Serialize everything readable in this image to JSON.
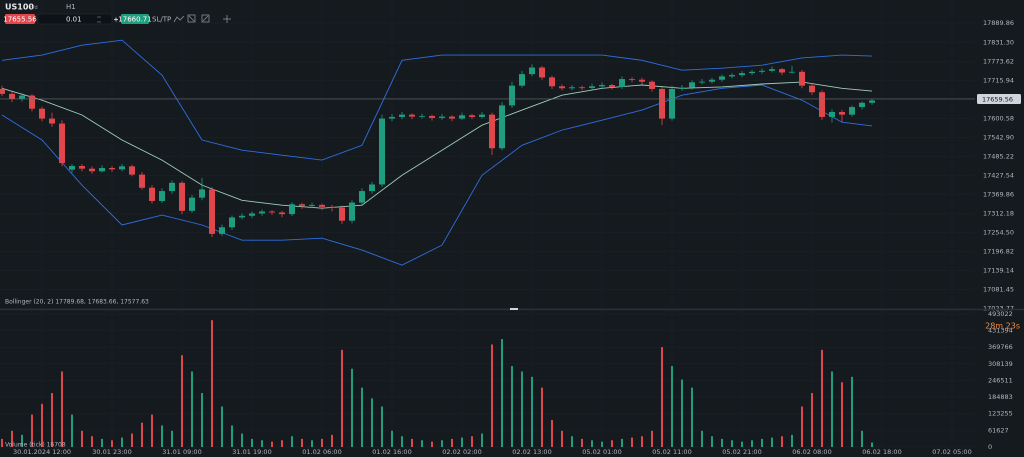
{
  "toolbar": {
    "symbol": "US100",
    "symbol_tag": "cfd",
    "timeframe": "H1",
    "sell_price": "17655.56",
    "lot": "0.01",
    "buy_price": "17660.71",
    "sltp": "SL/TP"
  },
  "chart_data": [
    {
      "type": "candlestick",
      "grid": true,
      "up_color": "#1f9e7f",
      "down_color": "#e0474c",
      "ylim": [
        17022,
        17960
      ],
      "yticks": [
        17889.86,
        {
          "value": 17831.3,
          "label": "17831.30"
        },
        17773.62,
        17715.94,
        17600.58,
        {
          "value": 17542.9,
          "label": "17542.90"
        },
        17485.22,
        17427.54,
        17369.86,
        17312.18,
        {
          "value": 17254.5,
          "label": "17254.50"
        },
        17196.82,
        17139.14,
        17081.45,
        17023.77
      ],
      "current_price": 17659.56,
      "countdown": "28m 23s",
      "xticks": [
        {
          "index": 4,
          "label": "30.01.2024 12:00"
        },
        {
          "index": 11,
          "label": "30.01 23:00"
        },
        {
          "index": 18,
          "label": "31.01 09:00"
        },
        {
          "index": 25,
          "label": "31.01 19:00"
        },
        {
          "index": 32,
          "label": "01.02 06:00"
        },
        {
          "index": 39,
          "label": "01.02 16:00"
        },
        {
          "index": 46,
          "label": "02.02 02:00"
        },
        {
          "index": 53,
          "label": "02.02 13:00"
        },
        {
          "index": 60,
          "label": "05.02 01:00"
        },
        {
          "index": 67,
          "label": "05.02 11:00"
        },
        {
          "index": 74,
          "label": "05.02 21:00"
        },
        {
          "index": 81,
          "label": "06.02 08:00"
        },
        {
          "index": 88,
          "label": "06.02 18:00"
        },
        {
          "index": 95,
          "label": "07.02 05:00"
        }
      ],
      "candles": [
        [
          17690,
          17700,
          17668,
          17675
        ],
        [
          17675,
          17682,
          17650,
          17660
        ],
        [
          17660,
          17678,
          17652,
          17670
        ],
        [
          17670,
          17674,
          17622,
          17630
        ],
        [
          17630,
          17636,
          17592,
          17600
        ],
        [
          17600,
          17618,
          17575,
          17585
        ],
        [
          17585,
          17595,
          17455,
          17465
        ],
        [
          17445,
          17462,
          17436,
          17456
        ],
        [
          17456,
          17462,
          17440,
          17448
        ],
        [
          17448,
          17455,
          17432,
          17440
        ],
        [
          17440,
          17458,
          17436,
          17450
        ],
        [
          17450,
          17456,
          17438,
          17446
        ],
        [
          17446,
          17462,
          17440,
          17455
        ],
        [
          17455,
          17460,
          17425,
          17430
        ],
        [
          17430,
          17438,
          17384,
          17390
        ],
        [
          17390,
          17398,
          17342,
          17350
        ],
        [
          17350,
          17388,
          17344,
          17380
        ],
        [
          17380,
          17412,
          17372,
          17405
        ],
        [
          17405,
          17410,
          17310,
          17320
        ],
        [
          17320,
          17368,
          17314,
          17360
        ],
        [
          17360,
          17420,
          17352,
          17385
        ],
        [
          17385,
          17392,
          17240,
          17250
        ],
        [
          17250,
          17278,
          17244,
          17270
        ],
        [
          17270,
          17306,
          17262,
          17300
        ],
        [
          17300,
          17312,
          17294,
          17305
        ],
        [
          17305,
          17318,
          17298,
          17312
        ],
        [
          17312,
          17324,
          17305,
          17318
        ],
        [
          17318,
          17322,
          17308,
          17315
        ],
        [
          17315,
          17320,
          17300,
          17310
        ],
        [
          17310,
          17346,
          17304,
          17340
        ],
        [
          17340,
          17344,
          17326,
          17335
        ],
        [
          17335,
          17345,
          17328,
          17338
        ],
        [
          17338,
          17342,
          17322,
          17332
        ],
        [
          17332,
          17338,
          17318,
          17330
        ],
        [
          17330,
          17336,
          17280,
          17290
        ],
        [
          17290,
          17352,
          17282,
          17345
        ],
        [
          17345,
          17388,
          17338,
          17380
        ],
        [
          17380,
          17408,
          17372,
          17400
        ],
        [
          17400,
          17612,
          17392,
          17600
        ],
        [
          17600,
          17614,
          17592,
          17605
        ],
        [
          17605,
          17620,
          17598,
          17612
        ],
        [
          17612,
          17616,
          17598,
          17606
        ],
        [
          17606,
          17615,
          17600,
          17608
        ],
        [
          17608,
          17612,
          17594,
          17602
        ],
        [
          17602,
          17614,
          17596,
          17606
        ],
        [
          17606,
          17610,
          17592,
          17600
        ],
        [
          17600,
          17618,
          17596,
          17610
        ],
        [
          17610,
          17614,
          17598,
          17605
        ],
        [
          17605,
          17620,
          17600,
          17612
        ],
        [
          17612,
          17618,
          17490,
          17510
        ],
        [
          17510,
          17650,
          17504,
          17640
        ],
        [
          17640,
          17712,
          17632,
          17700
        ],
        [
          17700,
          17745,
          17694,
          17735
        ],
        [
          17735,
          17765,
          17728,
          17755
        ],
        [
          17755,
          17760,
          17718,
          17725
        ],
        [
          17725,
          17730,
          17690,
          17698
        ],
        [
          17698,
          17704,
          17686,
          17692
        ],
        [
          17692,
          17702,
          17686,
          17695
        ],
        [
          17695,
          17700,
          17686,
          17693
        ],
        [
          17693,
          17706,
          17688,
          17698
        ],
        [
          17698,
          17710,
          17692,
          17702
        ],
        [
          17702,
          17706,
          17688,
          17696
        ],
        [
          17696,
          17728,
          17690,
          17720
        ],
        [
          17720,
          17726,
          17710,
          17718
        ],
        [
          17718,
          17724,
          17704,
          17712
        ],
        [
          17712,
          17716,
          17682,
          17690
        ],
        [
          17690,
          17696,
          17580,
          17600
        ],
        [
          17600,
          17700,
          17594,
          17690
        ],
        [
          17690,
          17702,
          17684,
          17694
        ],
        [
          17694,
          17716,
          17688,
          17710
        ],
        [
          17710,
          17720,
          17704,
          17712
        ],
        [
          17712,
          17724,
          17706,
          17718
        ],
        [
          17718,
          17734,
          17712,
          17728
        ],
        [
          17728,
          17738,
          17722,
          17732
        ],
        [
          17732,
          17744,
          17726,
          17738
        ],
        [
          17738,
          17748,
          17732,
          17742
        ],
        [
          17742,
          17752,
          17736,
          17745
        ],
        [
          17745,
          17758,
          17740,
          17750
        ],
        [
          17750,
          17754,
          17732,
          17740
        ],
        [
          17740,
          17760,
          17736,
          17742
        ],
        [
          17742,
          17748,
          17692,
          17700
        ],
        [
          17700,
          17706,
          17672,
          17680
        ],
        [
          17680,
          17686,
          17596,
          17605
        ],
        [
          17605,
          17628,
          17588,
          17620
        ],
        [
          17620,
          17626,
          17590,
          17612
        ],
        [
          17612,
          17640,
          17606,
          17635
        ],
        [
          17635,
          17652,
          17628,
          17648
        ],
        [
          17648,
          17660,
          17642,
          17655
        ]
      ],
      "indicator": {
        "label": "Bollinger (20, 2) 17789.68, 17683.66, 17577.63",
        "band_color": "#2f6fe0",
        "middle_color": "#9fcdb8",
        "index": [
          0,
          4,
          8,
          12,
          16,
          20,
          24,
          28,
          32,
          36,
          40,
          44,
          48,
          52,
          56,
          60,
          64,
          68,
          72,
          76,
          80,
          84,
          87
        ],
        "upper": [
          17777,
          17793,
          17823,
          17838,
          17732,
          17535,
          17504,
          17489,
          17474,
          17519,
          17777,
          17793,
          17793,
          17793,
          17793,
          17793,
          17777,
          17747,
          17753,
          17762,
          17784,
          17793,
          17789.68
        ],
        "middle": [
          17692,
          17656,
          17611,
          17535,
          17474,
          17398,
          17352,
          17337,
          17328,
          17337,
          17428,
          17504,
          17580,
          17626,
          17671,
          17692,
          17702,
          17692,
          17696,
          17705,
          17711,
          17692,
          17683.66
        ],
        "lower": [
          17611,
          17535,
          17398,
          17277,
          17307,
          17277,
          17231,
          17231,
          17237,
          17201,
          17155,
          17216,
          17428,
          17519,
          17565,
          17595,
          17626,
          17671,
          17692,
          17702,
          17656,
          17589,
          17577.63
        ]
      }
    },
    {
      "type": "volume",
      "label": "Volume (tick) 16708",
      "ylim": [
        0,
        504000
      ],
      "yticks": [
        493022,
        431394,
        369766,
        308139,
        246511,
        184883,
        123255,
        61627,
        0
      ],
      "values": [
        30000,
        60000,
        45000,
        120000,
        160000,
        200000,
        280000,
        120000,
        60000,
        40000,
        30000,
        25000,
        35000,
        50000,
        90000,
        120000,
        80000,
        60000,
        340000,
        280000,
        200000,
        470000,
        150000,
        80000,
        50000,
        30000,
        25000,
        20000,
        25000,
        40000,
        30000,
        25000,
        30000,
        45000,
        360000,
        290000,
        220000,
        180000,
        150000,
        60000,
        40000,
        30000,
        25000,
        20000,
        25000,
        30000,
        35000,
        40000,
        50000,
        380000,
        400000,
        300000,
        280000,
        260000,
        220000,
        100000,
        60000,
        40000,
        30000,
        25000,
        20000,
        25000,
        30000,
        35000,
        40000,
        60000,
        370000,
        300000,
        250000,
        220000,
        60000,
        40000,
        30000,
        25000,
        20000,
        25000,
        30000,
        35000,
        40000,
        45000,
        150000,
        200000,
        360000,
        280000,
        240000,
        260000,
        60000,
        16708
      ]
    }
  ]
}
